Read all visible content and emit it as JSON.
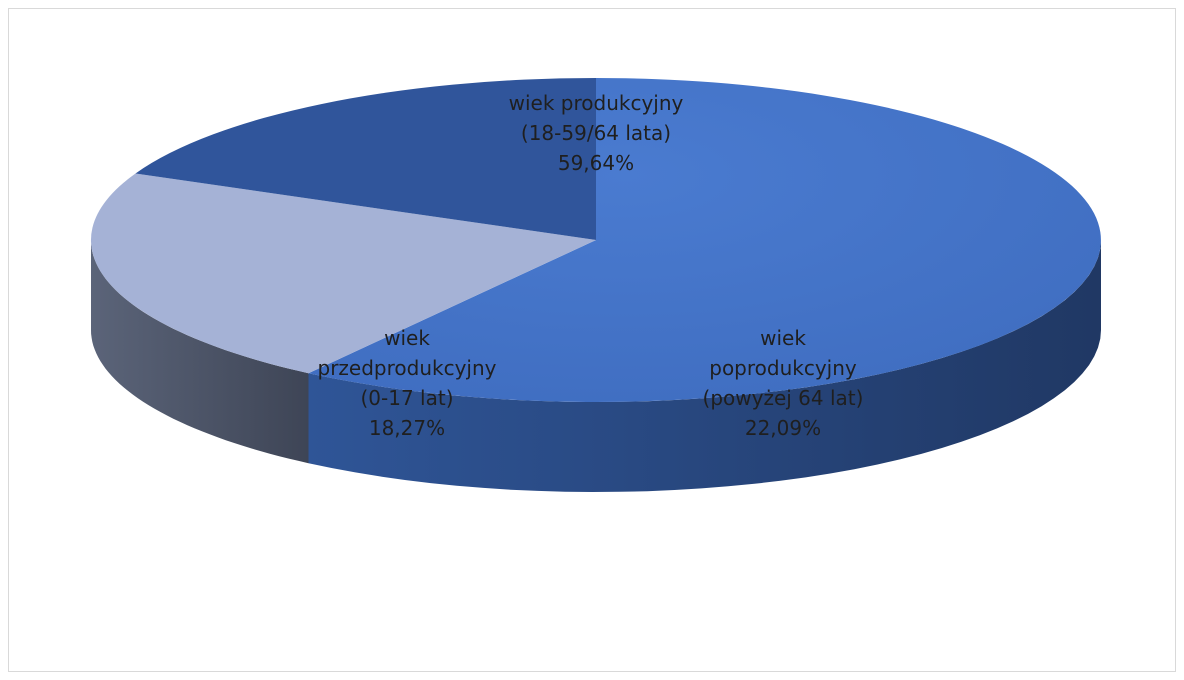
{
  "chart_data": {
    "type": "pie",
    "title": "",
    "style": "3d",
    "slices": [
      {
        "label_lines": [
          "wiek produkcyjny",
          "(18-59/64 lata)"
        ],
        "value": 59.64,
        "value_label": "59,64%",
        "color": "#4472C4"
      },
      {
        "label_lines": [
          "wiek",
          "poprodukcyjny",
          "(powyżej 64 lat)"
        ],
        "value": 22.09,
        "value_label": "22,09%",
        "color": "#A5B2D6"
      },
      {
        "label_lines": [
          "wiek",
          "przedprodukcyjny",
          "(0-17 lat)"
        ],
        "value": 18.27,
        "value_label": "18,27%",
        "color": "#30559B"
      }
    ]
  }
}
